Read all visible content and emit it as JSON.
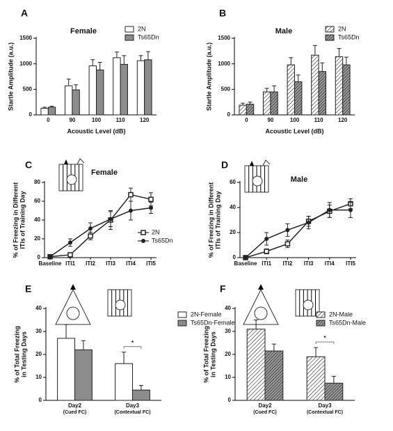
{
  "chart_data": [
    {
      "type": "bar",
      "panel": "A",
      "title": "Female",
      "x_label": "Acoustic Level (dB)",
      "y_label": [
        "Startle Amplitude (a.u.)"
      ],
      "categories": [
        "0",
        "90",
        "100",
        "110",
        "120"
      ],
      "ylim": [
        0,
        1500
      ],
      "yticks": [
        0,
        500,
        1000,
        1500
      ],
      "series": [
        {
          "name": "2N",
          "color": "#ffffff",
          "values": [
            130,
            570,
            960,
            1120,
            1060
          ],
          "errors": [
            20,
            130,
            120,
            110,
            100
          ]
        },
        {
          "name": "Ts65Dn",
          "color": "#8c8c8c",
          "values": [
            150,
            490,
            880,
            990,
            1080
          ],
          "errors": [
            20,
            100,
            150,
            170,
            160
          ]
        }
      ]
    },
    {
      "type": "bar",
      "panel": "B",
      "title": "Male",
      "x_label": "Acoustic Level (dB)",
      "y_label": [
        "Startle Amplitude (a.u.)"
      ],
      "categories": [
        "0",
        "90",
        "100",
        "110",
        "120"
      ],
      "ylim": [
        0,
        1500
      ],
      "yticks": [
        0,
        500,
        1000,
        1500
      ],
      "series": [
        {
          "name": "2N",
          "color": "#ffffff",
          "hatch": true,
          "values": [
            190,
            450,
            980,
            1170,
            1140
          ],
          "errors": [
            40,
            70,
            140,
            190,
            160
          ]
        },
        {
          "name": "Ts65Dn",
          "color": "#9a9a9a",
          "hatch": true,
          "values": [
            210,
            450,
            650,
            850,
            980
          ],
          "errors": [
            40,
            120,
            130,
            170,
            150
          ]
        }
      ]
    },
    {
      "type": "line",
      "panel": "C",
      "title": "Female",
      "icon": "cage",
      "y_label": [
        "% of Freezing in Different",
        "ITIs of Training Day"
      ],
      "categories": [
        "Baseline",
        "ITI1",
        "ITI2",
        "ITI3",
        "ITI4",
        "ITI5"
      ],
      "ylim": [
        0,
        80
      ],
      "yticks": [
        0,
        20,
        40,
        60,
        80
      ],
      "series": [
        {
          "name": "2N",
          "color": "#222222",
          "marker": "square",
          "values": [
            1,
            3,
            23,
            40,
            67,
            62
          ],
          "errors": [
            1,
            1,
            4,
            10,
            7,
            7
          ]
        },
        {
          "name": "Ts65Dn",
          "color": "#222222",
          "marker": "circle",
          "values": [
            1,
            16,
            31,
            41,
            50,
            53
          ],
          "errors": [
            1,
            4,
            6,
            8,
            10,
            6
          ]
        }
      ]
    },
    {
      "type": "line",
      "panel": "D",
      "title": "Male",
      "icon": "cage",
      "y_label": [
        "% of Freezing in Different",
        "ITIs of Training Day"
      ],
      "categories": [
        "Baseline",
        "ITI1",
        "ITI2",
        "ITI3",
        "ITI4",
        "ITI5"
      ],
      "ylim": [
        0,
        60
      ],
      "yticks": [
        0,
        20,
        40,
        60
      ],
      "series": [
        {
          "color": "#222222",
          "marker": "square",
          "values": [
            0,
            5,
            11,
            29,
            37,
            43
          ],
          "errors": [
            0,
            2,
            3,
            4,
            5,
            4
          ]
        },
        {
          "color": "#222222",
          "marker": "circle",
          "values": [
            0,
            15,
            22,
            28,
            38,
            38
          ],
          "errors": [
            0,
            5,
            5,
            5,
            6,
            6
          ]
        }
      ]
    },
    {
      "type": "bar",
      "panel": "E",
      "icon": "tone",
      "annotation": "*",
      "y_label": [
        "% of Total Freezing",
        "in Testing Days"
      ],
      "categories": [
        "Day2",
        "Day3"
      ],
      "category_notes": [
        "(Cued FC)",
        "(Contextual FC)"
      ],
      "ylim": [
        0,
        40
      ],
      "yticks": [
        0,
        10,
        20,
        30,
        40
      ],
      "series": [
        {
          "name": "2N-Female",
          "color": "#ffffff",
          "values": [
            27,
            16
          ],
          "errors": [
            6,
            5
          ]
        },
        {
          "name": "Ts65Dn-Female",
          "color": "#8c8c8c",
          "values": [
            22,
            4.5
          ],
          "errors": [
            4,
            2
          ]
        }
      ]
    },
    {
      "type": "bar",
      "panel": "F",
      "icon": "tone",
      "annotation": "*",
      "y_label": [
        "% of Total Freezing",
        "in Testing Days"
      ],
      "categories": [
        "Day2",
        "Day3"
      ],
      "category_notes": [
        "(Cued FC)",
        "(Contextual FC)"
      ],
      "ylim": [
        0,
        40
      ],
      "yticks": [
        0,
        10,
        20,
        30,
        40
      ],
      "series": [
        {
          "name": "2N-Male",
          "color": "#ffffff",
          "hatch": true,
          "values": [
            31,
            19
          ],
          "errors": [
            4,
            4
          ]
        },
        {
          "name": "Ts65Dn-Male",
          "color": "#9a9a9a",
          "hatch": true,
          "values": [
            21.5,
            7.5
          ],
          "errors": [
            3,
            3
          ]
        }
      ]
    }
  ]
}
